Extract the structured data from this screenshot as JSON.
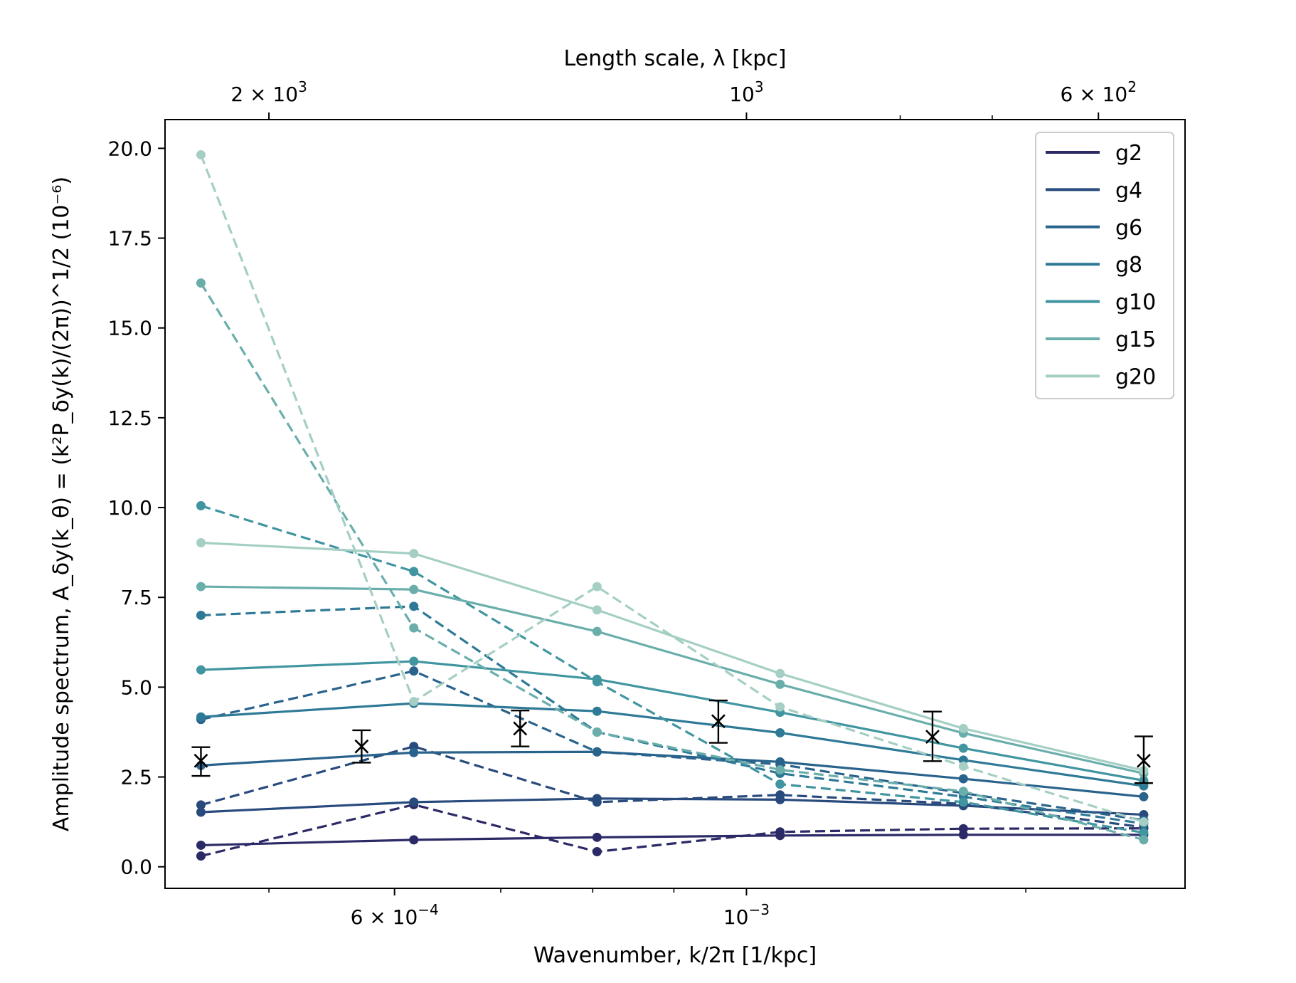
{
  "chart_data": {
    "type": "line",
    "xscale": "log",
    "xlim": [
      0.00043,
      0.00189
    ],
    "ylim": [
      -0.6,
      20.8
    ],
    "xlabel": "Wavenumber, k/2π [1/kpc]",
    "ylabel": "Amplitude spectrum, A_δy(k_θ) = (k²P_δy(k)/(2π))^1/2 (10⁻⁶)",
    "top_xlabel": "Length scale, λ [kpc]",
    "x_ticks": [
      {
        "value": 0.0006,
        "mant": "6 × 10",
        "exp": "−4"
      },
      {
        "value": 0.001,
        "mant": "10",
        "exp": "−3"
      }
    ],
    "x_minor_ticks": [
      0.0005,
      0.0007,
      0.0008,
      0.0009,
      0.0015
    ],
    "top_ticks": [
      {
        "value": 0.0005,
        "mant": "2 × 10",
        "exp": "3"
      },
      {
        "value": 0.001,
        "mant": "10",
        "exp": "3"
      },
      {
        "value": 0.0016667,
        "mant": "6 × 10",
        "exp": "2"
      }
    ],
    "top_minor_ticks": [
      0.00125,
      0.0014286
    ],
    "y_ticks": [
      "0.0",
      "2.5",
      "5.0",
      "7.5",
      "10.0",
      "12.5",
      "15.0",
      "17.5",
      "20.0"
    ],
    "x": [
      0.000453,
      0.000617,
      0.000805,
      0.00105,
      0.00137,
      0.00178
    ],
    "series": [
      {
        "name": "g2",
        "color": "#2c2a66",
        "solid": [
          0.6,
          0.75,
          0.82,
          0.87,
          0.89,
          0.89
        ],
        "dashed": [
          0.3,
          1.73,
          0.42,
          0.97,
          1.06,
          1.07
        ]
      },
      {
        "name": "g4",
        "color": "#284a7c",
        "solid": [
          1.52,
          1.8,
          1.9,
          1.87,
          1.7,
          1.45
        ],
        "dashed": [
          1.72,
          3.35,
          1.8,
          2.0,
          1.75,
          1.1
        ]
      },
      {
        "name": "g6",
        "color": "#29638c",
        "solid": [
          2.82,
          3.18,
          3.2,
          2.92,
          2.45,
          1.95
        ],
        "dashed": [
          4.1,
          5.45,
          3.2,
          2.85,
          2.05,
          1.3
        ]
      },
      {
        "name": "g8",
        "color": "#2e7a96",
        "solid": [
          4.17,
          4.55,
          4.33,
          3.73,
          2.97,
          2.25
        ],
        "dashed": [
          7.0,
          7.25,
          3.75,
          2.6,
          1.95,
          1.2
        ]
      },
      {
        "name": "g10",
        "color": "#4095a0",
        "solid": [
          5.48,
          5.72,
          5.22,
          4.3,
          3.3,
          2.4
        ],
        "dashed": [
          10.05,
          8.22,
          5.15,
          2.3,
          1.8,
          0.95
        ]
      },
      {
        "name": "g15",
        "color": "#6aaeab",
        "solid": [
          7.8,
          7.72,
          6.55,
          5.08,
          3.72,
          2.6
        ],
        "dashed": [
          16.25,
          6.65,
          3.75,
          2.7,
          2.1,
          0.75
        ]
      },
      {
        "name": "g20",
        "color": "#a5cfc4",
        "solid": [
          9.02,
          8.72,
          7.15,
          5.38,
          3.85,
          2.68
        ],
        "dashed": [
          19.82,
          4.6,
          7.8,
          4.45,
          2.8,
          1.25
        ]
      }
    ],
    "observations": {
      "x": [
        0.000453,
        0.000572,
        0.00072,
        0.00096,
        0.00131,
        0.00178
      ],
      "y": [
        2.95,
        3.35,
        3.85,
        4.05,
        3.62,
        2.95
      ],
      "yerr_low": [
        0.42,
        0.45,
        0.5,
        0.6,
        0.68,
        0.62
      ],
      "yerr_high": [
        0.38,
        0.45,
        0.5,
        0.58,
        0.7,
        0.68
      ]
    },
    "legend": {
      "position": "upper right",
      "entries": [
        "g2",
        "g4",
        "g6",
        "g8",
        "g10",
        "g15",
        "g20"
      ]
    },
    "grid": false
  }
}
